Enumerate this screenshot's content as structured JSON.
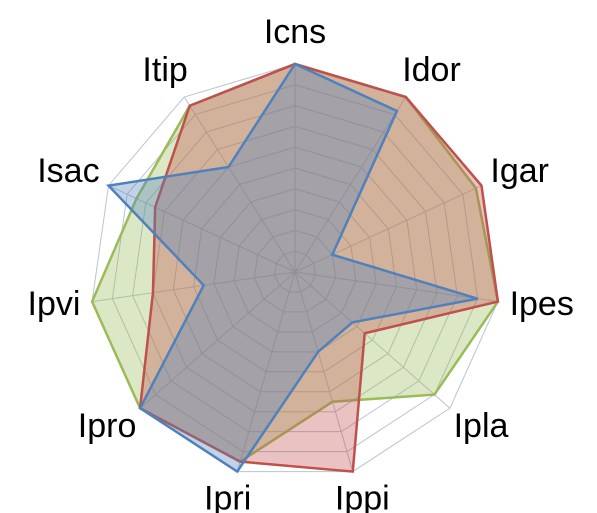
{
  "chart_data": {
    "type": "radar",
    "categories": [
      "Icns",
      "Idor",
      "Igar",
      "Ipes",
      "Ipla",
      "Ippi",
      "Ipri",
      "Ipro",
      "Ipvi",
      "Isac",
      "Itip"
    ],
    "series": [
      {
        "color": "#9bbb59",
        "values": [
          10,
          10,
          9.7,
          10,
          9,
          6.5,
          9.5,
          10,
          10,
          8.5,
          9.5
        ]
      },
      {
        "color": "#c0504d",
        "values": [
          10,
          10,
          10,
          10,
          4.5,
          10,
          9.5,
          10,
          7,
          7.5,
          9.5
        ]
      },
      {
        "color": "#4f81bd",
        "values": [
          10,
          9.2,
          2,
          9,
          3.7,
          4,
          10,
          10,
          4.5,
          10,
          6
        ]
      }
    ],
    "rlim": [
      0,
      10
    ],
    "rticks": [
      1,
      2,
      3,
      4,
      5,
      6,
      7,
      8,
      9,
      10
    ],
    "grid": true
  }
}
